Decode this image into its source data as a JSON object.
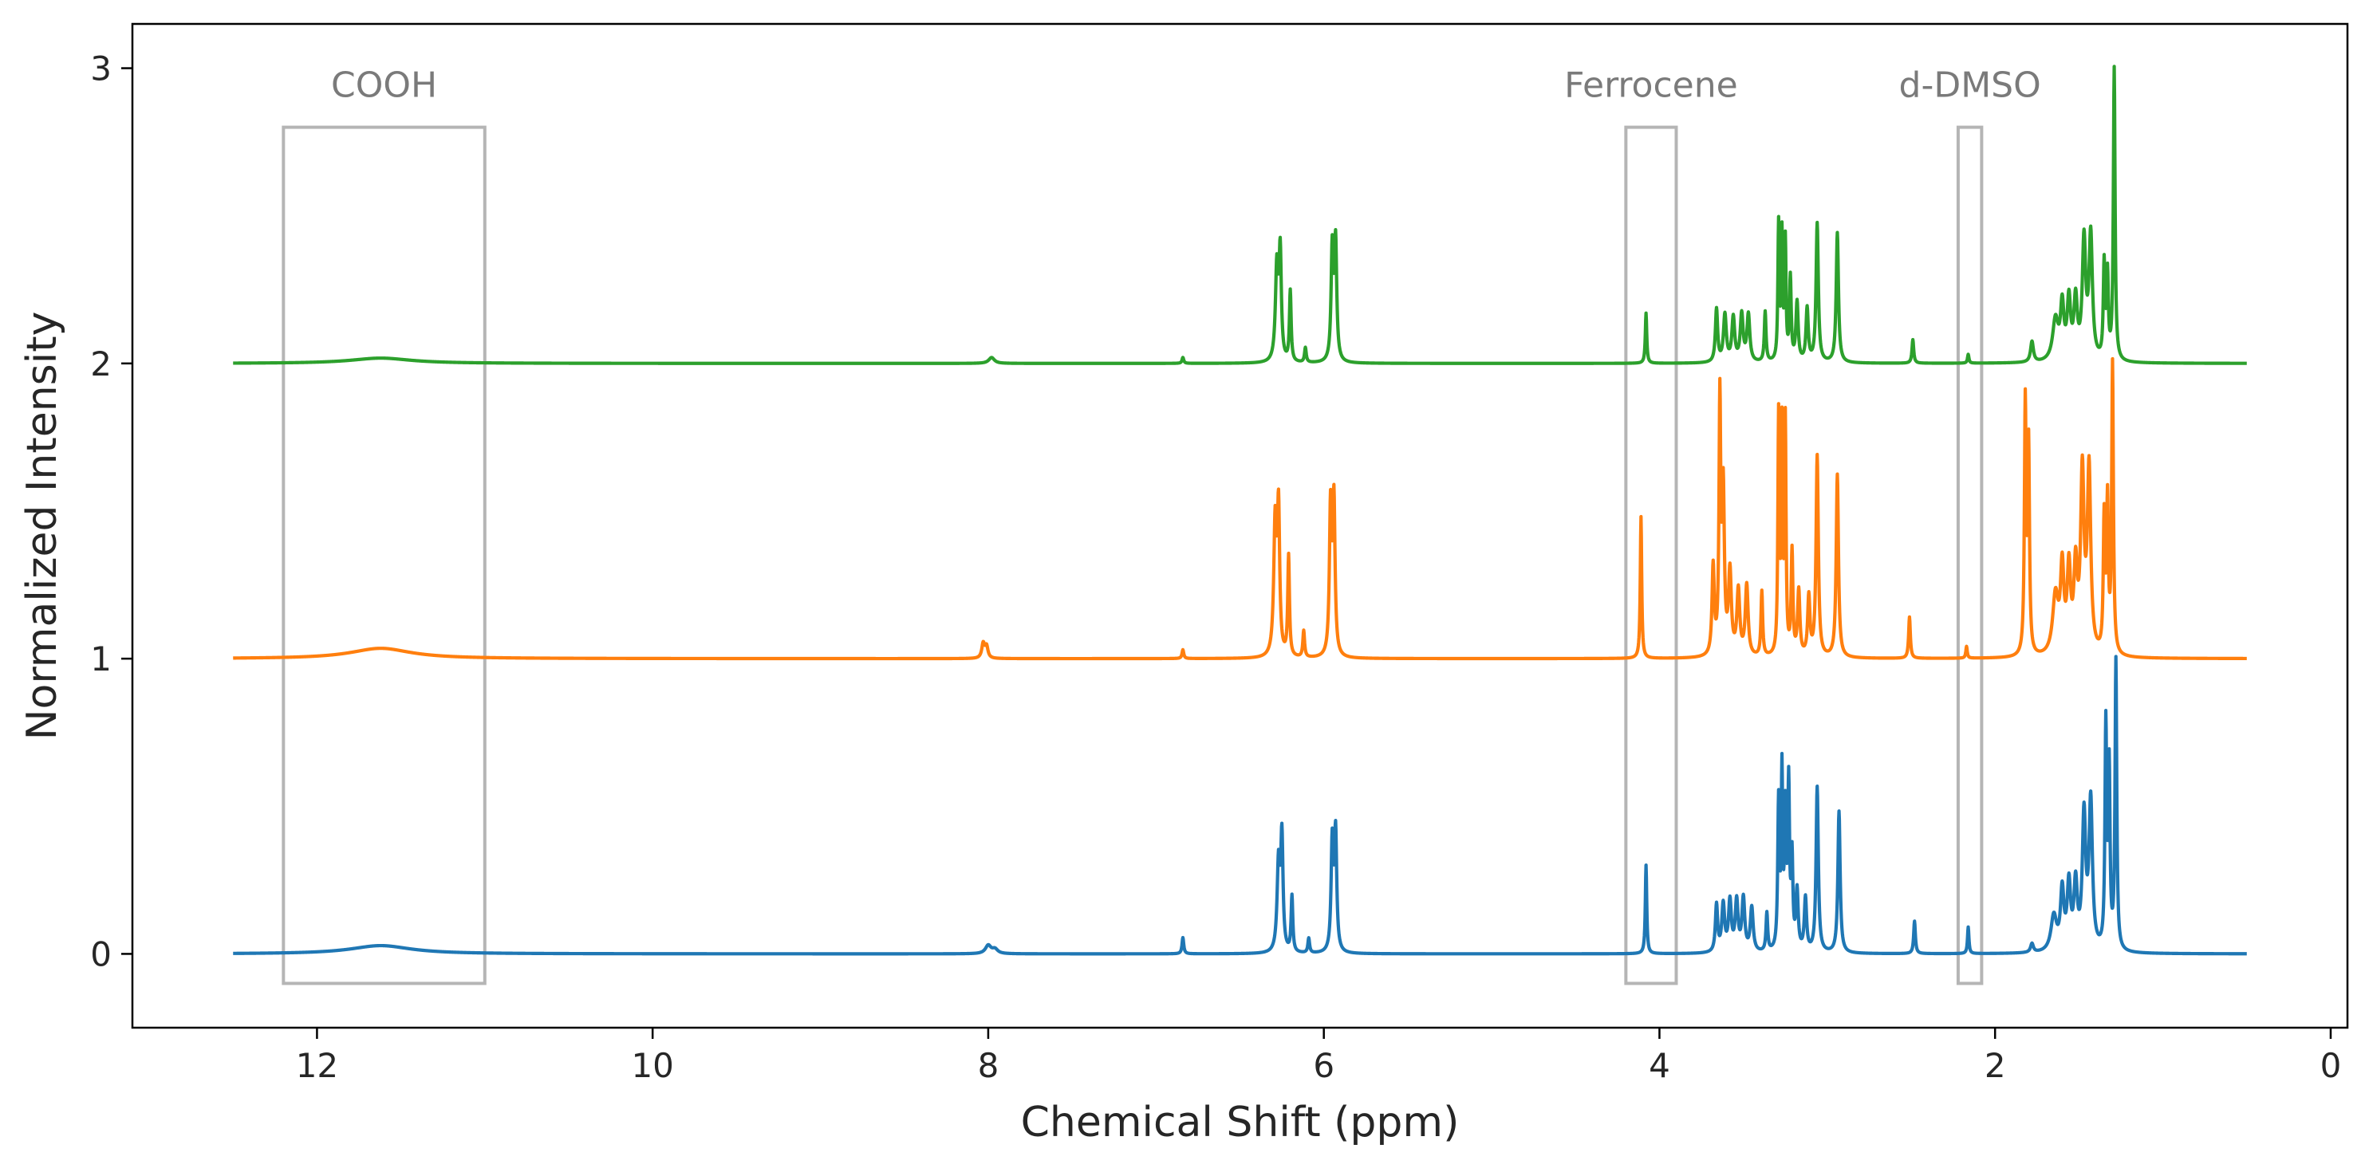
{
  "chart_data": {
    "type": "line",
    "title": "",
    "xlabel": "Chemical Shift (ppm)",
    "ylabel": "Normalized Intensity",
    "xlim": [
      13.1,
      -0.1
    ],
    "ylim": [
      -0.25,
      3.15
    ],
    "x_reversed": true,
    "xticks": [
      12,
      10,
      8,
      6,
      4,
      2,
      0
    ],
    "yticks": [
      0,
      1,
      2,
      3
    ],
    "grid": false,
    "legend": "none",
    "x_range": [
      12.5,
      0.5
    ],
    "regions": [
      {
        "label": "COOH",
        "x": [
          12.2,
          11.0
        ],
        "y": [
          -0.1,
          2.8
        ]
      },
      {
        "label": "Ferrocene",
        "x": [
          4.2,
          3.9
        ],
        "y": [
          -0.1,
          2.8
        ]
      },
      {
        "label": "d-DMSO",
        "x": [
          2.22,
          2.08
        ],
        "y": [
          -0.1,
          2.8
        ]
      }
    ],
    "series": [
      {
        "color": "#1f77b4",
        "offset": 0,
        "peaks": [
          [
            11.62,
            0.028,
            0.22
          ],
          [
            8.0,
            0.028,
            0.02
          ],
          [
            7.96,
            0.015,
            0.02
          ],
          [
            6.84,
            0.055,
            0.006
          ],
          [
            6.27,
            0.3,
            0.01
          ],
          [
            6.25,
            0.38,
            0.008
          ],
          [
            6.19,
            0.19,
            0.006
          ],
          [
            6.09,
            0.05,
            0.006
          ],
          [
            5.95,
            0.37,
            0.008
          ],
          [
            5.93,
            0.4,
            0.008
          ],
          [
            4.08,
            0.3,
            0.005
          ],
          [
            3.66,
            0.16,
            0.008
          ],
          [
            3.62,
            0.16,
            0.01
          ],
          [
            3.58,
            0.17,
            0.01
          ],
          [
            3.54,
            0.17,
            0.01
          ],
          [
            3.5,
            0.18,
            0.01
          ],
          [
            3.45,
            0.15,
            0.01
          ],
          [
            3.36,
            0.13,
            0.006
          ],
          [
            3.29,
            0.5,
            0.006
          ],
          [
            3.27,
            0.58,
            0.005
          ],
          [
            3.25,
            0.45,
            0.006
          ],
          [
            3.23,
            0.55,
            0.006
          ],
          [
            3.21,
            0.3,
            0.006
          ],
          [
            3.18,
            0.2,
            0.008
          ],
          [
            3.13,
            0.18,
            0.008
          ],
          [
            3.06,
            0.56,
            0.008
          ],
          [
            2.93,
            0.48,
            0.008
          ],
          [
            2.48,
            0.11,
            0.006
          ],
          [
            2.16,
            0.09,
            0.005
          ],
          [
            1.78,
            0.03,
            0.01
          ],
          [
            1.65,
            0.12,
            0.02
          ],
          [
            1.6,
            0.2,
            0.012
          ],
          [
            1.56,
            0.22,
            0.012
          ],
          [
            1.52,
            0.22,
            0.012
          ],
          [
            1.47,
            0.45,
            0.012
          ],
          [
            1.43,
            0.5,
            0.012
          ],
          [
            1.34,
            0.75,
            0.006
          ],
          [
            1.32,
            0.6,
            0.006
          ],
          [
            1.28,
            0.98,
            0.006
          ]
        ]
      },
      {
        "color": "#ff7f0e",
        "offset": 1,
        "peaks": [
          [
            11.62,
            0.035,
            0.22
          ],
          [
            8.03,
            0.05,
            0.01
          ],
          [
            8.01,
            0.04,
            0.01
          ],
          [
            6.84,
            0.03,
            0.006
          ],
          [
            6.29,
            0.45,
            0.01
          ],
          [
            6.27,
            0.48,
            0.008
          ],
          [
            6.21,
            0.34,
            0.006
          ],
          [
            6.12,
            0.09,
            0.006
          ],
          [
            5.96,
            0.5,
            0.008
          ],
          [
            5.94,
            0.52,
            0.008
          ],
          [
            4.11,
            0.48,
            0.005
          ],
          [
            3.68,
            0.3,
            0.008
          ],
          [
            3.64,
            0.85,
            0.006
          ],
          [
            3.62,
            0.55,
            0.008
          ],
          [
            3.58,
            0.28,
            0.01
          ],
          [
            3.53,
            0.22,
            0.01
          ],
          [
            3.48,
            0.24,
            0.01
          ],
          [
            3.39,
            0.22,
            0.006
          ],
          [
            3.29,
            0.8,
            0.005
          ],
          [
            3.27,
            0.75,
            0.005
          ],
          [
            3.25,
            0.78,
            0.005
          ],
          [
            3.21,
            0.35,
            0.006
          ],
          [
            3.17,
            0.22,
            0.008
          ],
          [
            3.11,
            0.2,
            0.008
          ],
          [
            3.06,
            0.68,
            0.008
          ],
          [
            2.94,
            0.62,
            0.008
          ],
          [
            2.51,
            0.14,
            0.006
          ],
          [
            2.17,
            0.04,
            0.005
          ],
          [
            1.82,
            0.85,
            0.006
          ],
          [
            1.8,
            0.7,
            0.006
          ],
          [
            1.64,
            0.2,
            0.02
          ],
          [
            1.6,
            0.28,
            0.012
          ],
          [
            1.56,
            0.28,
            0.012
          ],
          [
            1.52,
            0.28,
            0.012
          ],
          [
            1.48,
            0.6,
            0.012
          ],
          [
            1.44,
            0.62,
            0.012
          ],
          [
            1.35,
            0.45,
            0.006
          ],
          [
            1.33,
            0.5,
            0.006
          ],
          [
            1.3,
            0.98,
            0.006
          ]
        ]
      },
      {
        "color": "#2ca02c",
        "offset": 2,
        "peaks": [
          [
            11.62,
            0.018,
            0.22
          ],
          [
            7.98,
            0.02,
            0.02
          ],
          [
            6.84,
            0.02,
            0.006
          ],
          [
            6.28,
            0.32,
            0.01
          ],
          [
            6.26,
            0.36,
            0.008
          ],
          [
            6.2,
            0.24,
            0.006
          ],
          [
            6.11,
            0.05,
            0.006
          ],
          [
            5.95,
            0.38,
            0.008
          ],
          [
            5.93,
            0.4,
            0.008
          ],
          [
            4.08,
            0.17,
            0.005
          ],
          [
            3.66,
            0.18,
            0.008
          ],
          [
            3.61,
            0.16,
            0.01
          ],
          [
            3.56,
            0.15,
            0.01
          ],
          [
            3.51,
            0.16,
            0.01
          ],
          [
            3.47,
            0.16,
            0.01
          ],
          [
            3.37,
            0.17,
            0.006
          ],
          [
            3.29,
            0.46,
            0.005
          ],
          [
            3.27,
            0.42,
            0.005
          ],
          [
            3.25,
            0.4,
            0.005
          ],
          [
            3.22,
            0.28,
            0.006
          ],
          [
            3.18,
            0.2,
            0.008
          ],
          [
            3.12,
            0.18,
            0.008
          ],
          [
            3.06,
            0.47,
            0.008
          ],
          [
            2.94,
            0.44,
            0.008
          ],
          [
            2.49,
            0.08,
            0.006
          ],
          [
            2.16,
            0.03,
            0.005
          ],
          [
            1.78,
            0.07,
            0.01
          ],
          [
            1.64,
            0.14,
            0.02
          ],
          [
            1.6,
            0.18,
            0.012
          ],
          [
            1.56,
            0.2,
            0.012
          ],
          [
            1.52,
            0.2,
            0.012
          ],
          [
            1.47,
            0.4,
            0.012
          ],
          [
            1.43,
            0.42,
            0.012
          ],
          [
            1.35,
            0.32,
            0.006
          ],
          [
            1.33,
            0.28,
            0.006
          ],
          [
            1.29,
            0.99,
            0.006
          ]
        ]
      }
    ]
  }
}
